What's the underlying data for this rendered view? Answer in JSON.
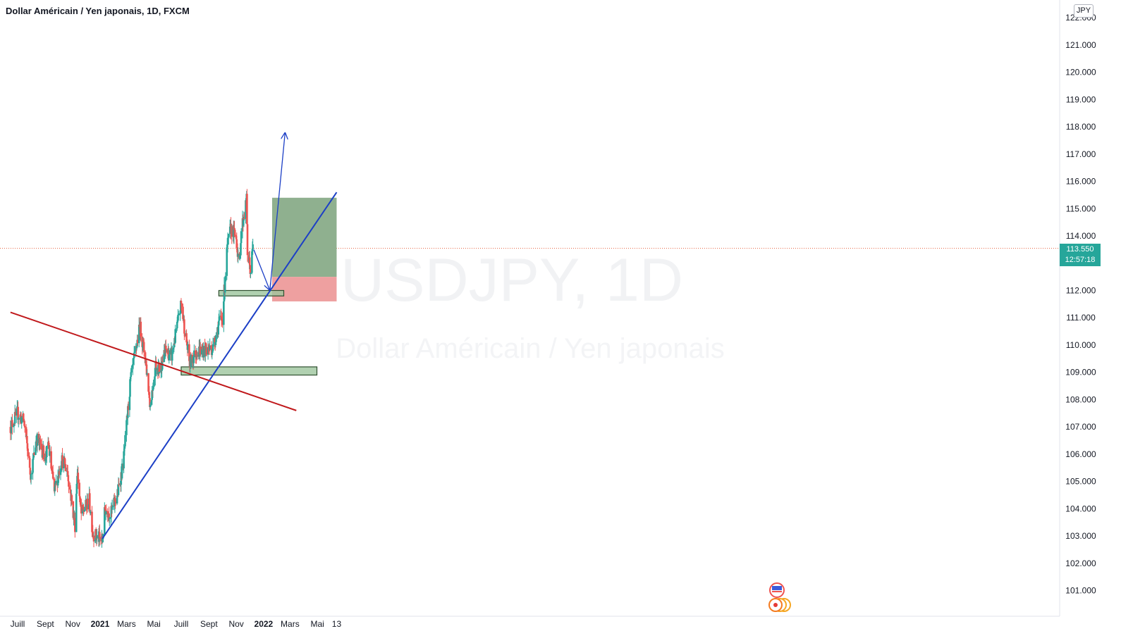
{
  "chart_title": "Dollar Américain / Yen japonais, 1D, FXCM",
  "currency_badge": "JPY",
  "watermark": {
    "symbol": "USDJPY, 1D",
    "description": "Dollar Américain / Yen japonais"
  },
  "current_price": {
    "value": "113.550",
    "countdown": "12:57:18"
  },
  "colors": {
    "up": "#26a69a",
    "down": "#ef5350",
    "support_trend": "#1c3fc6",
    "resistance_trend": "#c0181b",
    "zone_fill": "#9dc69d",
    "target": "#8fb08f",
    "stop": "#eea0a0"
  },
  "chart_data": {
    "type": "candlestick",
    "y_axis": {
      "ylim": [
        100.3,
        122.2
      ],
      "ticks": [
        "101.000",
        "102.000",
        "103.000",
        "104.000",
        "105.000",
        "106.000",
        "107.000",
        "108.000",
        "109.000",
        "110.000",
        "111.000",
        "112.000",
        "113.000",
        "114.000",
        "115.000",
        "116.000",
        "117.000",
        "118.000",
        "119.000",
        "120.000",
        "121.000",
        "122.000"
      ]
    },
    "x_axis": {
      "ticks": [
        {
          "label": "Juill",
          "date": "2020-07-01",
          "bold": false
        },
        {
          "label": "Sept",
          "date": "2020-09-01",
          "bold": false
        },
        {
          "label": "Nov",
          "date": "2020-11-01",
          "bold": false
        },
        {
          "label": "2021",
          "date": "2021-01-01",
          "bold": true
        },
        {
          "label": "Mars",
          "date": "2021-03-01",
          "bold": false
        },
        {
          "label": "Mai",
          "date": "2021-05-01",
          "bold": false
        },
        {
          "label": "Juill",
          "date": "2021-07-01",
          "bold": false
        },
        {
          "label": "Sept",
          "date": "2021-09-01",
          "bold": false
        },
        {
          "label": "Nov",
          "date": "2021-11-01",
          "bold": false
        },
        {
          "label": "2022",
          "date": "2022-01-01",
          "bold": true
        },
        {
          "label": "Mars",
          "date": "2022-03-01",
          "bold": false
        },
        {
          "label": "Mai",
          "date": "2022-05-01",
          "bold": false
        },
        {
          "label": "13",
          "date": "2022-06-13",
          "bold": false
        }
      ]
    },
    "price_path": [
      [
        "2020-06-15",
        107.0
      ],
      [
        "2020-07-01",
        107.5
      ],
      [
        "2020-07-15",
        107.2
      ],
      [
        "2020-07-31",
        105.2
      ],
      [
        "2020-08-12",
        106.6
      ],
      [
        "2020-09-01",
        105.9
      ],
      [
        "2020-09-08",
        106.3
      ],
      [
        "2020-09-21",
        104.6
      ],
      [
        "2020-10-07",
        105.8
      ],
      [
        "2020-10-20",
        105.4
      ],
      [
        "2020-11-06",
        103.4
      ],
      [
        "2020-11-11",
        105.4
      ],
      [
        "2020-11-20",
        103.8
      ],
      [
        "2020-12-08",
        104.3
      ],
      [
        "2020-12-16",
        103.1
      ],
      [
        "2021-01-06",
        102.8
      ],
      [
        "2021-01-12",
        104.0
      ],
      [
        "2021-01-25",
        103.8
      ],
      [
        "2021-02-10",
        104.6
      ],
      [
        "2021-02-22",
        105.7
      ],
      [
        "2021-03-10",
        108.7
      ],
      [
        "2021-03-31",
        110.7
      ],
      [
        "2021-04-13",
        109.4
      ],
      [
        "2021-04-23",
        107.8
      ],
      [
        "2021-05-05",
        109.3
      ],
      [
        "2021-05-14",
        109.1
      ],
      [
        "2021-05-28",
        109.8
      ],
      [
        "2021-06-10",
        109.6
      ],
      [
        "2021-07-01",
        111.5
      ],
      [
        "2021-07-20",
        109.3
      ],
      [
        "2021-08-05",
        109.8
      ],
      [
        "2021-08-20",
        109.8
      ],
      [
        "2021-09-10",
        109.9
      ],
      [
        "2021-09-23",
        110.8
      ],
      [
        "2021-10-01",
        111.0
      ],
      [
        "2021-10-12",
        113.6
      ],
      [
        "2021-10-20",
        114.3
      ],
      [
        "2021-11-01",
        113.9
      ],
      [
        "2021-11-08",
        112.9
      ],
      [
        "2021-11-12",
        114.2
      ],
      [
        "2021-11-24",
        115.3
      ],
      [
        "2021-11-26",
        113.4
      ],
      [
        "2021-12-03",
        112.7
      ],
      [
        "2021-12-08",
        113.6
      ]
    ],
    "annotations": [
      {
        "kind": "trendline",
        "name": "support",
        "from": [
          "2021-01-06",
          102.9
        ],
        "to": [
          "2022-06-13",
          115.6
        ]
      },
      {
        "kind": "trendline",
        "name": "resistance",
        "from": [
          "2020-06-15",
          111.2
        ],
        "to": [
          "2022-03-15",
          107.6
        ]
      },
      {
        "kind": "zone",
        "from_date": "2021-07-01",
        "to_date": "2022-04-30",
        "low": 108.9,
        "high": 109.2
      },
      {
        "kind": "zone",
        "from_date": "2021-09-23",
        "to_date": "2022-02-15",
        "low": 111.8,
        "high": 112.0
      },
      {
        "kind": "position",
        "from_date": "2022-01-20",
        "to_date": "2022-06-13",
        "entry": 112.5,
        "target": 115.4,
        "stop": 111.6
      },
      {
        "kind": "arrow",
        "from": [
          "2021-12-10",
          113.5
        ],
        "to": [
          "2022-01-15",
          112.0
        ]
      },
      {
        "kind": "arrow",
        "from": [
          "2022-01-15",
          112.0
        ],
        "to": [
          "2022-02-18",
          117.8
        ]
      }
    ]
  }
}
